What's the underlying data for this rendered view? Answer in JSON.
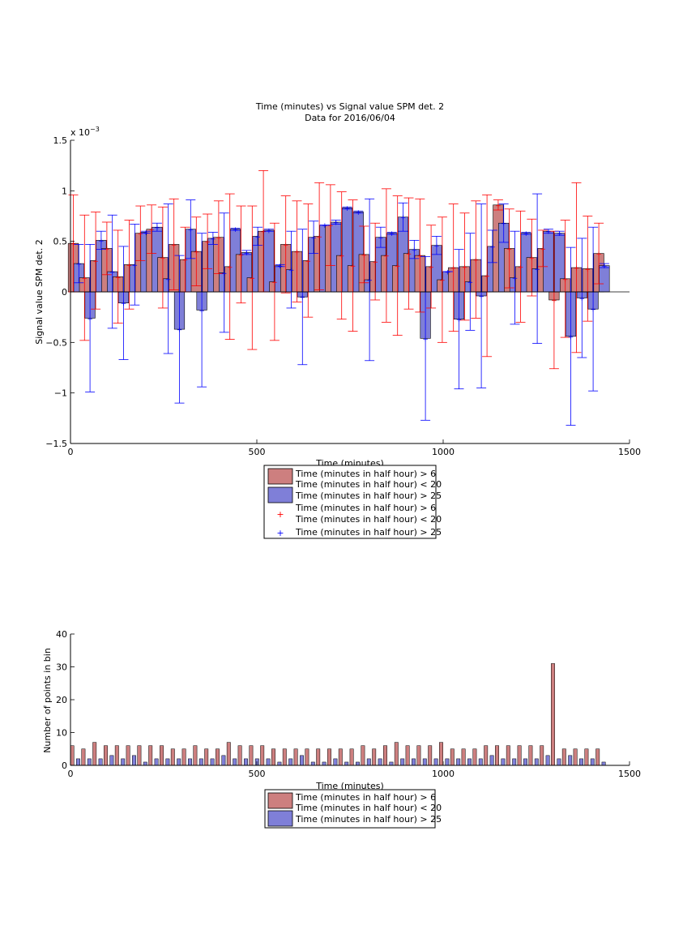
{
  "colors": {
    "series1_fill": "#cd7f7f",
    "series2_fill": "#7f7fd8",
    "series1_err": "#ff0000",
    "series2_err": "#0000ff",
    "axis": "#000000"
  },
  "chart_data": [
    {
      "type": "bar",
      "title": "Time (minutes) vs Signal value SPM det. 2",
      "subtitle": "Data for 2016/06/04",
      "xlabel": "Time (minutes)",
      "ylabel": "Signal value SPM det. 2",
      "exponent_label": "x 10",
      "exponent_power": "−3",
      "xlim": [
        0,
        1500
      ],
      "ylim": [
        -1.5,
        1.5
      ],
      "xticks": [
        "0",
        "500",
        "1000"
      ],
      "xticks_extra": [
        "1500"
      ],
      "yticks": [
        "−1.5",
        "−1",
        "−0.5",
        "0",
        "0.5",
        "1",
        "1.5"
      ],
      "legend": [
        "Time (minutes in half hour) > 6",
        "Time (minutes in half hour) < 20",
        "Time (minutes in half hour) > 25",
        "Time (minutes in half hour) > 6",
        "Time (minutes in half hour) < 20",
        "Time (minutes in half hour) > 25"
      ],
      "series": [
        {
          "x": [
            15,
            45,
            75,
            105,
            135,
            165,
            195,
            225,
            255,
            285,
            315,
            345,
            375,
            405,
            435,
            465,
            495,
            525,
            555,
            585,
            615,
            645,
            675,
            705,
            735,
            765,
            795,
            825,
            855,
            885,
            915,
            945,
            975,
            1005,
            1035,
            1065,
            1095,
            1125,
            1155,
            1185,
            1215,
            1245,
            1275,
            1305,
            1335,
            1365,
            1395,
            1425
          ],
          "values": [
            0.48,
            0.14,
            0.31,
            0.43,
            0.15,
            0.27,
            0.58,
            0.62,
            0.34,
            0.47,
            0.32,
            0.4,
            0.5,
            0.54,
            0.25,
            0.37,
            0.14,
            0.6,
            0.1,
            0.47,
            0.4,
            0.31,
            0.55,
            0.66,
            0.36,
            0.26,
            0.37,
            0.3,
            0.36,
            0.26,
            0.38,
            0.36,
            0.25,
            0.12,
            0.24,
            0.25,
            0.32,
            0.16,
            0.86,
            0.43,
            0.25,
            0.34,
            0.43,
            -0.08,
            0.13,
            0.24,
            0.23,
            0.38
          ],
          "err": [
            0.48,
            0.62,
            0.48,
            0.26,
            0.46,
            0.44,
            0.27,
            0.24,
            0.5,
            0.45,
            0.32,
            0.34,
            0.27,
            0.36,
            0.72,
            0.48,
            0.71,
            0.6,
            0.58,
            0.48,
            0.5,
            0.56,
            0.53,
            0.4,
            0.63,
            0.65,
            0.28,
            0.38,
            0.66,
            0.69,
            0.55,
            0.56,
            0.41,
            0.62,
            0.63,
            0.53,
            0.58,
            0.8,
            0.05,
            0.39,
            0.55,
            0.38,
            0.18,
            0.68,
            0.58,
            0.84,
            0.52,
            0.3
          ]
        },
        {
          "x": [
            15,
            45,
            75,
            105,
            135,
            165,
            195,
            225,
            255,
            285,
            315,
            345,
            375,
            405,
            435,
            465,
            495,
            525,
            555,
            585,
            615,
            645,
            675,
            705,
            735,
            765,
            795,
            825,
            855,
            885,
            915,
            945,
            975,
            1005,
            1035,
            1065,
            1095,
            1125,
            1155,
            1185,
            1215,
            1245,
            1275,
            1305,
            1335,
            1365,
            1395,
            1425
          ],
          "values": [
            0.28,
            -0.26,
            0.51,
            0.2,
            -0.11,
            0.27,
            0.59,
            0.64,
            0.13,
            -0.37,
            0.62,
            -0.18,
            0.53,
            0.19,
            0.62,
            0.39,
            0.55,
            0.61,
            0.26,
            0.22,
            -0.05,
            0.54,
            0.66,
            0.69,
            0.83,
            0.79,
            0.12,
            0.54,
            0.58,
            0.74,
            0.42,
            -0.46,
            0.46,
            0.2,
            -0.27,
            0.1,
            -0.04,
            0.45,
            0.68,
            0.14,
            0.58,
            0.23,
            0.6,
            0.58,
            -0.44,
            -0.06,
            -0.17,
            0.26
          ],
          "err": [
            0.19,
            0.73,
            0.09,
            0.56,
            0.56,
            0.4,
            0.01,
            0.04,
            0.74,
            0.73,
            0.29,
            0.76,
            0.06,
            0.59,
            0.01,
            0.02,
            0.09,
            0.01,
            0.01,
            0.38,
            0.67,
            0.16,
            0.0,
            0.02,
            0.01,
            0.01,
            0.8,
            0.1,
            0.01,
            0.14,
            0.09,
            0.81,
            0.09,
            0.0,
            0.69,
            0.48,
            0.91,
            0.16,
            0.19,
            0.46,
            0.01,
            0.74,
            0.02,
            0.02,
            0.88,
            0.59,
            0.81,
            0.02
          ]
        }
      ]
    },
    {
      "type": "bar",
      "xlabel": "Time (minutes)",
      "ylabel": "Number of points in bin",
      "xlim": [
        0,
        1500
      ],
      "ylim": [
        0,
        40
      ],
      "xticks": [
        "0",
        "500",
        "1000"
      ],
      "xticks_extra": [
        "1500"
      ],
      "yticks": [
        "0",
        "10",
        "20",
        "30",
        "40"
      ],
      "legend": [
        "Time (minutes in half hour) > 6",
        "Time (minutes in half hour) < 20",
        "Time (minutes in half hour) > 25"
      ],
      "series": [
        {
          "x": [
            15,
            45,
            75,
            105,
            135,
            165,
            195,
            225,
            255,
            285,
            315,
            345,
            375,
            405,
            435,
            465,
            495,
            525,
            555,
            585,
            615,
            645,
            675,
            705,
            735,
            765,
            795,
            825,
            855,
            885,
            915,
            945,
            975,
            1005,
            1035,
            1065,
            1095,
            1125,
            1155,
            1185,
            1215,
            1245,
            1275,
            1305,
            1335,
            1365,
            1395,
            1425
          ],
          "values": [
            6,
            5,
            7,
            6,
            6,
            6,
            6,
            6,
            6,
            5,
            5,
            6,
            5,
            5,
            7,
            6,
            6,
            6,
            5,
            5,
            5,
            5,
            5,
            5,
            5,
            5,
            6,
            5,
            6,
            7,
            6,
            6,
            6,
            7,
            5,
            5,
            5,
            6,
            6,
            6,
            6,
            6,
            6,
            31,
            5,
            5,
            5,
            5
          ]
        },
        {
          "x": [
            15,
            45,
            75,
            105,
            135,
            165,
            195,
            225,
            255,
            285,
            315,
            345,
            375,
            405,
            435,
            465,
            495,
            525,
            555,
            585,
            615,
            645,
            675,
            705,
            735,
            765,
            795,
            825,
            855,
            885,
            915,
            945,
            975,
            1005,
            1035,
            1065,
            1095,
            1125,
            1155,
            1185,
            1215,
            1245,
            1275,
            1305,
            1335,
            1365,
            1395,
            1425
          ],
          "values": [
            2,
            2,
            2,
            3,
            2,
            3,
            1,
            2,
            2,
            2,
            2,
            2,
            2,
            3,
            2,
            2,
            2,
            2,
            1,
            2,
            3,
            1,
            1,
            2,
            1,
            1,
            2,
            2,
            1,
            2,
            2,
            2,
            2,
            2,
            2,
            2,
            2,
            3,
            2,
            2,
            2,
            2,
            3,
            2,
            3,
            2,
            2,
            1
          ]
        }
      ]
    }
  ]
}
